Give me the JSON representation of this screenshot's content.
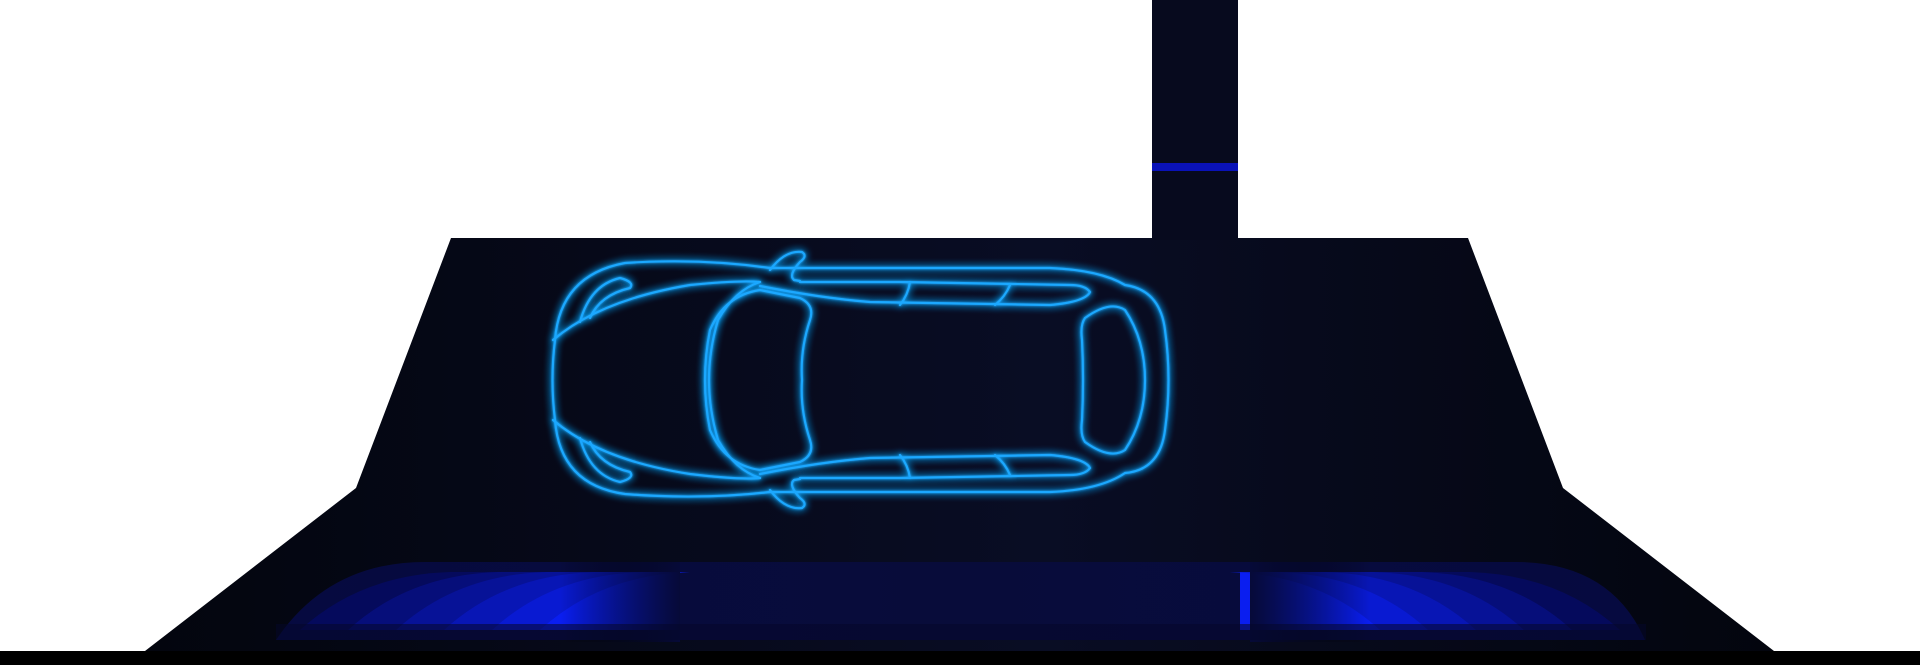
{
  "scene": {
    "colors": {
      "background": "#ffffff",
      "body_dark": "#03050e",
      "body_mid": "#090d24",
      "post": "#070a1e",
      "post_indicator": "#0a12b8",
      "neon_outline": "#1aa8ff",
      "neon_glow": "#0066ff",
      "light_bright": "#0a1ef0",
      "light_deep": "#050a5c",
      "floor_line": "#000000"
    },
    "icons": {
      "vehicle": "car-top-view-icon",
      "indicator": "status-indicator-line"
    }
  }
}
